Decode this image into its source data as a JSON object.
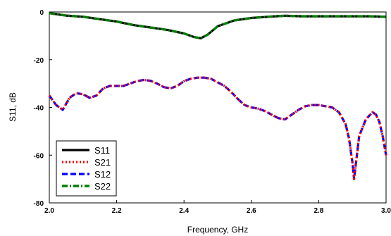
{
  "chart_data": {
    "type": "line",
    "title": "",
    "xlabel": "Frequency, GHz",
    "ylabel": "S11, dB",
    "xlim": [
      2.0,
      3.0
    ],
    "ylim": [
      -80,
      0
    ],
    "xticks": [
      "2.0",
      "2.2",
      "2.4",
      "2.6",
      "2.8",
      "3.0"
    ],
    "yticks": [
      "0",
      "-20",
      "-40",
      "-60",
      "-80"
    ],
    "grid": false,
    "legend_position": "bottom-left",
    "series": [
      {
        "name": "S11",
        "color": "#000000",
        "style": "solid",
        "x": [
          2.0,
          2.05,
          2.1,
          2.15,
          2.2,
          2.25,
          2.3,
          2.35,
          2.4,
          2.43,
          2.45,
          2.47,
          2.5,
          2.55,
          2.6,
          2.65,
          2.7,
          2.75,
          2.8,
          2.85,
          2.9,
          2.95,
          3.0
        ],
        "y": [
          -0.5,
          -1.5,
          -2,
          -3,
          -4,
          -5.5,
          -6.5,
          -7.5,
          -9,
          -10.5,
          -11,
          -9.5,
          -6,
          -3.5,
          -2.5,
          -2,
          -1.6,
          -1.8,
          -1.8,
          -1.8,
          -1.8,
          -1.8,
          -2
        ]
      },
      {
        "name": "S21",
        "color": "#ff0000",
        "style": "dotted",
        "x": [
          2.0,
          2.02,
          2.04,
          2.06,
          2.08,
          2.1,
          2.12,
          2.14,
          2.16,
          2.18,
          2.2,
          2.22,
          2.24,
          2.26,
          2.28,
          2.3,
          2.32,
          2.34,
          2.36,
          2.38,
          2.4,
          2.42,
          2.44,
          2.46,
          2.48,
          2.5,
          2.52,
          2.54,
          2.56,
          2.58,
          2.6,
          2.62,
          2.64,
          2.66,
          2.68,
          2.7,
          2.72,
          2.74,
          2.76,
          2.78,
          2.8,
          2.82,
          2.84,
          2.86,
          2.88,
          2.89,
          2.9,
          2.905,
          2.91,
          2.92,
          2.94,
          2.96,
          2.97,
          2.98,
          2.99,
          3.0
        ],
        "y": [
          -35,
          -39,
          -41,
          -36,
          -34,
          -34.5,
          -36,
          -35,
          -32,
          -31,
          -31,
          -31,
          -30,
          -29,
          -28.5,
          -28.8,
          -30,
          -31.5,
          -32,
          -31,
          -29,
          -28,
          -27.5,
          -27.5,
          -28,
          -29.5,
          -31,
          -33.5,
          -36.5,
          -39,
          -40,
          -40.5,
          -41.5,
          -43,
          -44.5,
          -45,
          -43,
          -41,
          -39.5,
          -39,
          -39,
          -39.5,
          -40,
          -42,
          -47,
          -53,
          -63,
          -70,
          -64,
          -52,
          -45,
          -42,
          -43,
          -46,
          -52,
          -60
        ]
      },
      {
        "name": "S12",
        "color": "#0000ff",
        "style": "dashed",
        "x": [
          2.0,
          2.02,
          2.04,
          2.06,
          2.08,
          2.1,
          2.12,
          2.14,
          2.16,
          2.18,
          2.2,
          2.22,
          2.24,
          2.26,
          2.28,
          2.3,
          2.32,
          2.34,
          2.36,
          2.38,
          2.4,
          2.42,
          2.44,
          2.46,
          2.48,
          2.5,
          2.52,
          2.54,
          2.56,
          2.58,
          2.6,
          2.62,
          2.64,
          2.66,
          2.68,
          2.7,
          2.72,
          2.74,
          2.76,
          2.78,
          2.8,
          2.82,
          2.84,
          2.86,
          2.88,
          2.89,
          2.9,
          2.905,
          2.91,
          2.92,
          2.94,
          2.96,
          2.97,
          2.98,
          2.99,
          3.0
        ],
        "y": [
          -35,
          -39,
          -41,
          -36,
          -34,
          -34.5,
          -36,
          -35,
          -32,
          -31,
          -31,
          -31,
          -30,
          -29,
          -28.5,
          -28.8,
          -30,
          -31.5,
          -32,
          -31,
          -29,
          -28,
          -27.5,
          -27.5,
          -28,
          -29.5,
          -31,
          -33.5,
          -36.5,
          -39,
          -40,
          -40.5,
          -41.5,
          -43,
          -44.5,
          -45,
          -43,
          -41,
          -39.5,
          -39,
          -39,
          -39.5,
          -40,
          -42,
          -47,
          -53,
          -63,
          -70,
          -64,
          -52,
          -45,
          -42,
          -43,
          -46,
          -52,
          -60
        ]
      },
      {
        "name": "S22",
        "color": "#008000",
        "style": "dash-dot",
        "x": [
          2.0,
          2.05,
          2.1,
          2.15,
          2.2,
          2.25,
          2.3,
          2.35,
          2.4,
          2.43,
          2.45,
          2.47,
          2.5,
          2.55,
          2.6,
          2.65,
          2.7,
          2.75,
          2.8,
          2.85,
          2.9,
          2.95,
          3.0
        ],
        "y": [
          -0.5,
          -1.5,
          -2,
          -3,
          -4,
          -5.5,
          -6.5,
          -7.5,
          -9,
          -10.5,
          -11,
          -9.5,
          -6,
          -3.5,
          -2.5,
          -2,
          -1.6,
          -1.8,
          -1.8,
          -1.8,
          -1.8,
          -1.8,
          -2
        ]
      }
    ]
  }
}
